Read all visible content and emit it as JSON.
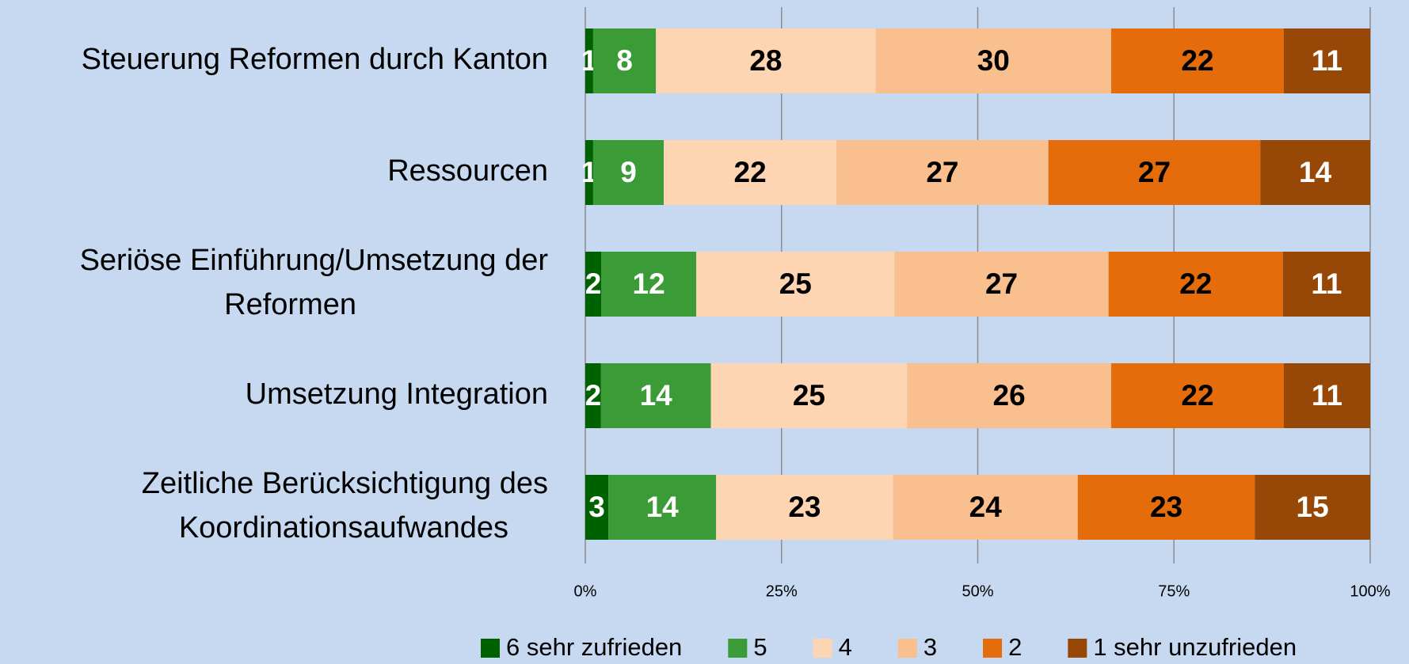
{
  "chart_data": {
    "type": "bar",
    "orientation": "horizontal",
    "stack": "percent",
    "categories": [
      [
        "Steuerung Reformen durch Kanton"
      ],
      [
        "Ressourcen"
      ],
      [
        "Seriöse Einführung/Umsetzung der",
        "Reformen"
      ],
      [
        "Umsetzung Integration"
      ],
      [
        "Zeitliche Berücksichtigung des",
        "Koordinationsaufwandes"
      ]
    ],
    "series": [
      {
        "name": "6 sehr zufrieden",
        "color": "#006100",
        "label_color": "#ffffff",
        "values": [
          1,
          1,
          2,
          2,
          3
        ]
      },
      {
        "name": "5",
        "color": "#3b9b37",
        "label_color": "#ffffff",
        "values": [
          8,
          9,
          12,
          14,
          14
        ]
      },
      {
        "name": "4",
        "color": "#fdd5b3",
        "label_color": "#000000",
        "values": [
          28,
          22,
          25,
          25,
          23
        ]
      },
      {
        "name": "3",
        "color": "#fabf8f",
        "label_color": "#000000",
        "values": [
          30,
          27,
          27,
          26,
          24
        ]
      },
      {
        "name": "2",
        "color": "#e46c0a",
        "label_color": "#000000",
        "values": [
          22,
          27,
          22,
          22,
          23
        ]
      },
      {
        "name": "1 sehr unzufrieden",
        "color": "#974806",
        "label_color": "#ffffff",
        "values": [
          11,
          14,
          11,
          11,
          15
        ]
      }
    ],
    "xlim": [
      0,
      100
    ],
    "xticks": [
      {
        "value": 0,
        "label": "0%"
      },
      {
        "value": 25,
        "label": "25%"
      },
      {
        "value": 50,
        "label": "50%"
      },
      {
        "value": 75,
        "label": "75%"
      },
      {
        "value": 100,
        "label": "100%"
      }
    ],
    "grid": true,
    "legend": "bottom"
  }
}
